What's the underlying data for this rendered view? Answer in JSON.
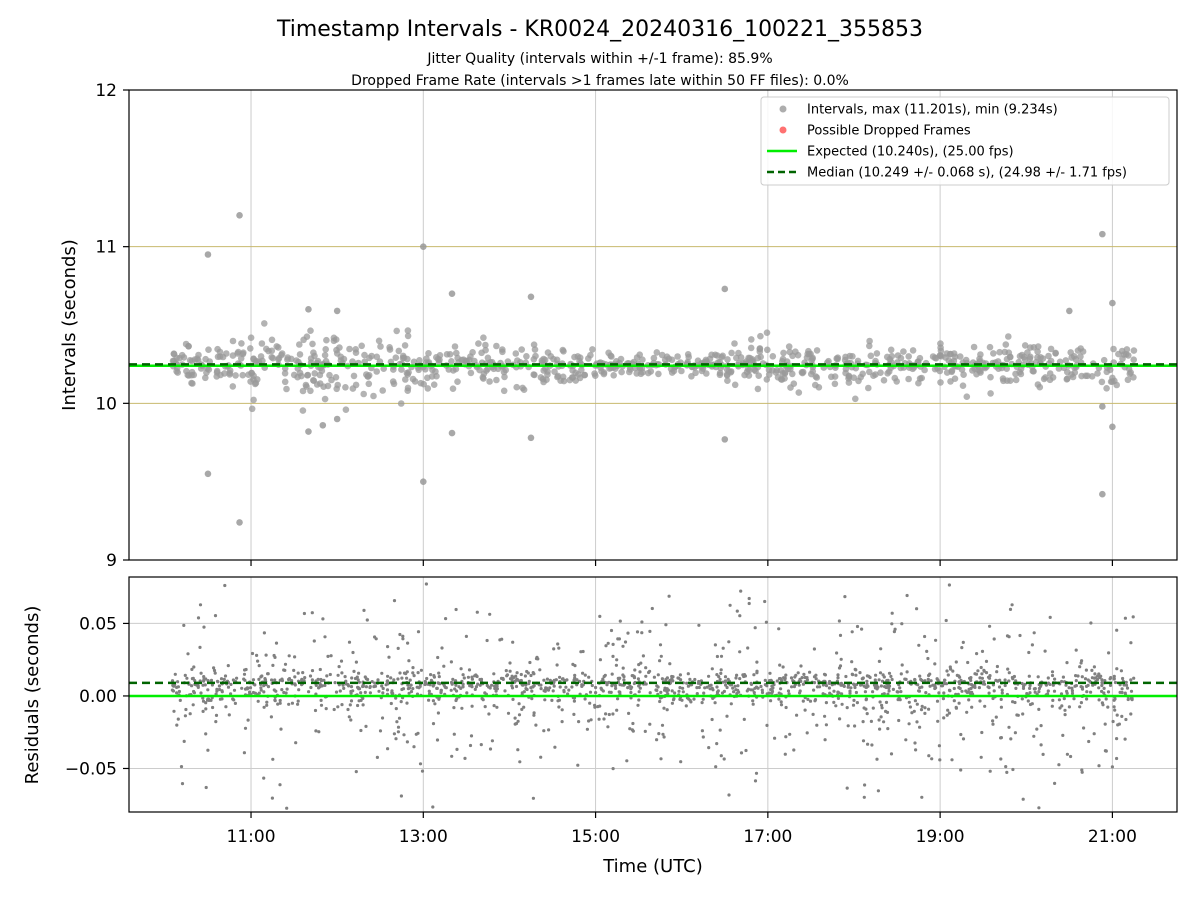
{
  "figure": {
    "title": "Timestamp Intervals - KR0024_20240316_100221_355853",
    "subtitle_1": "Jitter Quality (intervals within +/-1 frame): 85.9%",
    "subtitle_2": "Dropped Frame Rate (intervals >1 frames late within 50 FF files): 0.0%",
    "xlabel": "Time (UTC)"
  },
  "colors": {
    "interval_points": "#999999",
    "dropped_points": "#ff4d4d",
    "expected_line": "#00ee00",
    "median_line": "#006400",
    "residual_points": "#808080",
    "threshold_lines": "#c8b96e",
    "grid": "#cccccc"
  },
  "legend": {
    "intervals": "Intervals, max (11.201s), min (9.234s)",
    "dropped": "Possible Dropped Frames",
    "expected": "Expected (10.240s), (25.00 fps)",
    "median": "Median (10.249 +/- 0.068 s), (24.98 +/- 1.71 fps)"
  },
  "chart_data": [
    {
      "type": "scatter",
      "panel": "top",
      "ylabel": "Intervals (seconds)",
      "xlim": [
        "09:35",
        "21:45"
      ],
      "ylim": [
        9,
        12
      ],
      "x_ticks": [
        "11:00",
        "13:00",
        "15:00",
        "17:00",
        "19:00",
        "21:00"
      ],
      "y_ticks": [
        "9",
        "10",
        "11",
        "12"
      ],
      "x_range_of_data": [
        "10:05",
        "21:15"
      ],
      "expected": 10.24,
      "median": 10.249,
      "threshold_lines": [
        10.0,
        11.0
      ],
      "max_interval": 11.201,
      "min_interval": 9.234,
      "grid": "vertical",
      "legend_position": "top-right",
      "outliers": [
        {
          "x": "10:52",
          "y": 11.2
        },
        {
          "x": "10:30",
          "y": 10.95
        },
        {
          "x": "13:00",
          "y": 11.0
        },
        {
          "x": "20:53",
          "y": 11.08
        },
        {
          "x": "16:30",
          "y": 10.73
        },
        {
          "x": "13:20",
          "y": 10.7
        },
        {
          "x": "14:15",
          "y": 10.68
        },
        {
          "x": "11:40",
          "y": 10.6
        },
        {
          "x": "12:00",
          "y": 10.59
        },
        {
          "x": "21:00",
          "y": 10.64
        },
        {
          "x": "20:30",
          "y": 10.59
        },
        {
          "x": "10:30",
          "y": 9.55
        },
        {
          "x": "10:52",
          "y": 9.24
        },
        {
          "x": "13:00",
          "y": 9.5
        },
        {
          "x": "20:53",
          "y": 9.42
        },
        {
          "x": "13:20",
          "y": 9.81
        },
        {
          "x": "14:15",
          "y": 9.78
        },
        {
          "x": "16:30",
          "y": 9.77
        },
        {
          "x": "11:40",
          "y": 9.82
        },
        {
          "x": "11:50",
          "y": 9.86
        },
        {
          "x": "12:00",
          "y": 9.9
        },
        {
          "x": "21:00",
          "y": 9.85
        },
        {
          "x": "20:53",
          "y": 9.98
        }
      ],
      "dropped_frames": []
    },
    {
      "type": "scatter",
      "panel": "bottom",
      "ylabel": "Residuals (seconds)",
      "xlim": [
        "09:35",
        "21:45"
      ],
      "ylim": [
        -0.08,
        0.082
      ],
      "y_ticks": [
        "−0.05",
        "0.00",
        "0.05"
      ],
      "y_tick_values": [
        -0.05,
        0.0,
        0.05
      ],
      "expected_residual": 0.0,
      "median_residual": 0.009,
      "grid": "both"
    }
  ]
}
